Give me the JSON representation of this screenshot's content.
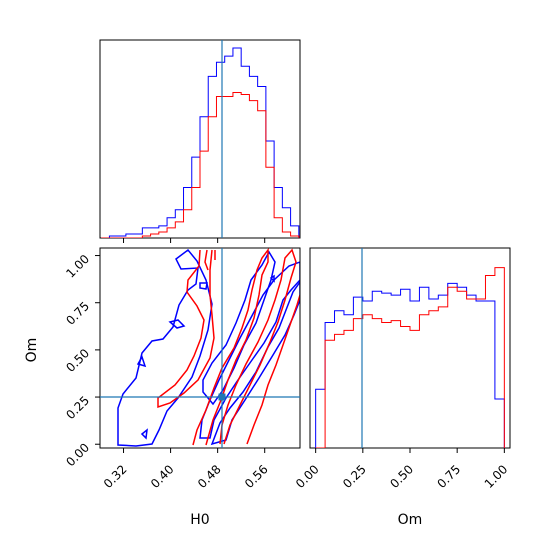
{
  "chart_data": {
    "type": "corner",
    "parameters": [
      "H0",
      "Om"
    ],
    "truths": {
      "H0": 0.495,
      "Om": 0.26
    },
    "colors": {
      "series_a": "#0000ff",
      "series_b": "#ff0000",
      "truth": "#1f77b4"
    },
    "panels": [
      {
        "id": "hist-h0",
        "type": "histogram",
        "xlim": [
          0.28,
          0.62
        ],
        "bin_edges": [
          0.282,
          0.296,
          0.31,
          0.324,
          0.338,
          0.352,
          0.366,
          0.38,
          0.394,
          0.408,
          0.422,
          0.436,
          0.45,
          0.464,
          0.478,
          0.492,
          0.506,
          0.52,
          0.534,
          0.548,
          0.562,
          0.576,
          0.59,
          0.604,
          0.618
        ],
        "series": [
          {
            "values": [
              0,
              1,
              1,
              2,
              2,
              5,
              5,
              6,
              10,
              14,
              25,
              40,
              60,
              80,
              87,
              90,
              94,
              85,
              80,
              75,
              48,
              25,
              15,
              6
            ]
          },
          {
            "values": [
              0,
              0,
              0,
              0,
              0,
              1,
              2,
              3,
              5,
              8,
              14,
              25,
              43,
              60,
              70,
              70,
              72,
              71,
              68,
              63,
              35,
              10,
              3,
              1
            ]
          }
        ]
      },
      {
        "id": "scatter-h0-om",
        "type": "contour",
        "xlim": [
          0.28,
          0.62
        ],
        "ylim": [
          -0.02,
          1.04
        ],
        "xticks": [
          "0.32",
          "0.40",
          "0.48",
          "0.56"
        ],
        "yticks": [
          "0.00",
          "0.25",
          "0.50",
          "0.75",
          "1.00"
        ],
        "xlabel": "H0",
        "ylabel": "Om"
      },
      {
        "id": "hist-om",
        "type": "histogram",
        "xlim": [
          -0.03,
          1.03
        ],
        "xticks": [
          "0.00",
          "0.25",
          "0.50",
          "0.75",
          "1.00"
        ],
        "xlabel": "Om",
        "bin_edges": [
          0.0,
          0.05,
          0.1,
          0.15,
          0.2,
          0.25,
          0.3,
          0.35,
          0.4,
          0.45,
          0.5,
          0.55,
          0.6,
          0.65,
          0.7,
          0.75,
          0.8,
          0.85,
          0.9,
          0.95,
          1.0
        ],
        "series": [
          {
            "values": [
              30,
              64,
              70,
              68,
              77,
              75,
              80,
              79,
              78,
              81,
              75,
              82,
              76,
              78,
              84,
              82,
              78,
              75,
              75,
              25
            ]
          },
          {
            "values": [
              0,
              55,
              58,
              60,
              66,
              68,
              66,
              64,
              65,
              62,
              60,
              68,
              70,
              72,
              82,
              80,
              76,
              76,
              88,
              92
            ]
          }
        ]
      }
    ]
  }
}
